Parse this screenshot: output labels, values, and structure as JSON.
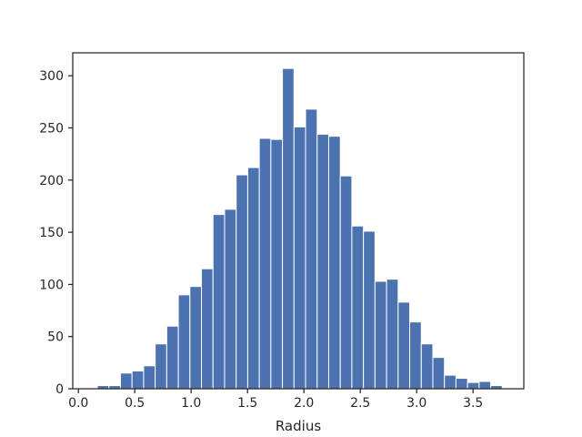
{
  "chart_data": {
    "type": "bar",
    "title": "",
    "xlabel": "Radius",
    "ylabel": "",
    "xlim": [
      -0.05,
      3.95
    ],
    "ylim": [
      0,
      322
    ],
    "xticks": [
      0.0,
      0.5,
      1.0,
      1.5,
      2.0,
      2.5,
      3.0,
      3.5
    ],
    "xtick_labels": [
      "0.0",
      "0.5",
      "1.0",
      "1.5",
      "2.0",
      "2.5",
      "3.0",
      "3.5"
    ],
    "yticks": [
      0,
      50,
      100,
      150,
      200,
      250,
      300
    ],
    "ytick_labels": [
      "0",
      "50",
      "100",
      "150",
      "200",
      "250",
      "300"
    ],
    "bin_width": 0.1026,
    "bin_edges": [
      0.168,
      0.2706,
      0.3732,
      0.4758,
      0.5784,
      0.681,
      0.7836,
      0.8862,
      0.9888,
      1.0914,
      1.194,
      1.2966,
      1.3992,
      1.5018,
      1.6044,
      1.707,
      1.8096,
      1.9122,
      2.0148,
      2.1174,
      2.22,
      2.3226,
      2.4252,
      2.5278,
      2.6304,
      2.733,
      2.8356,
      2.9382,
      3.0408,
      3.1434,
      3.246,
      3.3486,
      3.4512,
      3.5538,
      3.6564,
      3.759,
      3.8616
    ],
    "values": [
      3,
      3,
      15,
      17,
      22,
      43,
      60,
      90,
      98,
      115,
      167,
      172,
      205,
      212,
      240,
      239,
      307,
      251,
      268,
      244,
      242,
      204,
      156,
      151,
      103,
      105,
      83,
      64,
      43,
      30,
      13,
      10,
      6,
      7,
      3,
      0
    ],
    "bar_color": "#4c72b0",
    "edge_color": "#ffffff",
    "grid": false
  }
}
